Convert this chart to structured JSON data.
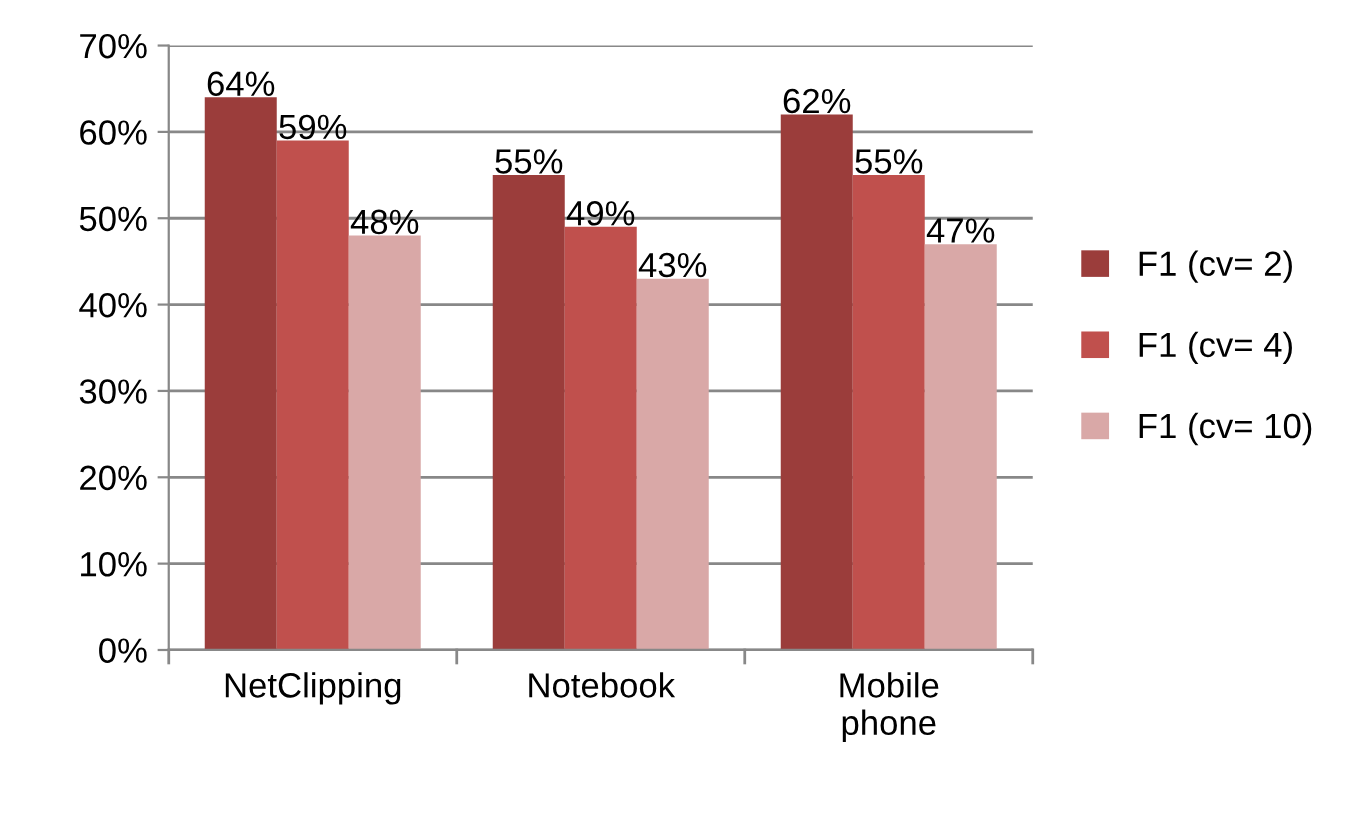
{
  "chart_data": {
    "type": "bar",
    "categories": [
      "NetClipping",
      "Notebook",
      "Mobile phone"
    ],
    "series": [
      {
        "name": "F1 (cv= 2)",
        "color": "#9b3d3b",
        "values": [
          64,
          55,
          62
        ],
        "value_labels": [
          "64%",
          "55%",
          "62%"
        ]
      },
      {
        "name": "F1 (cv= 4)",
        "color": "#c0504d",
        "values": [
          59,
          49,
          55
        ],
        "value_labels": [
          "59%",
          "49%",
          "55%"
        ]
      },
      {
        "name": "F1 (cv= 10)",
        "color": "#d9a8a7",
        "values": [
          48,
          43,
          47
        ],
        "value_labels": [
          "48%",
          "43%",
          "47%"
        ]
      }
    ],
    "ylim": [
      0,
      70
    ],
    "yticks": [
      {
        "value": 0,
        "label": "0%"
      },
      {
        "value": 10,
        "label": "10%"
      },
      {
        "value": 20,
        "label": "20%"
      },
      {
        "value": 30,
        "label": "30%"
      },
      {
        "value": 40,
        "label": "40%"
      },
      {
        "value": 50,
        "label": "50%"
      },
      {
        "value": 60,
        "label": "60%"
      },
      {
        "value": 70,
        "label": "70%"
      }
    ],
    "grid": "y",
    "legend": "right"
  }
}
